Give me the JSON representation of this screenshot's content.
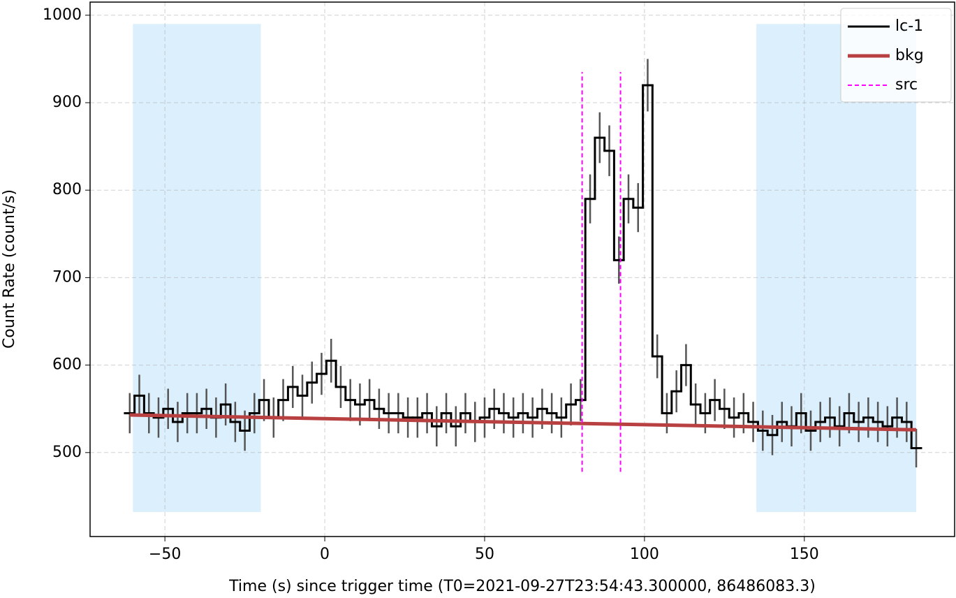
{
  "chart_data": {
    "type": "line",
    "xlabel": "Time (s) since trigger time (T0=2021-09-27T23:54:43.300000, 86486083.3)",
    "ylabel": "Count Rate (count/s)",
    "xlim": [
      -73.4,
      197
    ],
    "ylim": [
      404,
      1015
    ],
    "xticks": [
      {
        "value": -50,
        "label": "−50"
      },
      0,
      50,
      100,
      150
    ],
    "yticks": [
      500,
      600,
      700,
      800,
      900,
      1000
    ],
    "grid": true,
    "legend": "upper right",
    "series": [
      {
        "name": "lc-1",
        "color": "#000000",
        "x": [
          -61,
          -58,
          -55,
          -52,
          -49,
          -46,
          -43,
          -40,
          -37,
          -34,
          -31,
          -28,
          -25,
          -22,
          -19,
          -16,
          -13,
          -10,
          -7,
          -4,
          -1,
          2,
          5,
          8,
          11,
          14,
          17,
          20,
          23,
          26,
          29,
          32,
          35,
          38,
          41,
          44,
          47,
          50,
          53,
          56,
          59,
          62,
          65,
          68,
          71,
          74,
          77,
          80,
          83,
          86,
          89,
          92,
          95,
          98,
          101,
          104,
          107,
          110,
          113,
          116,
          119,
          122,
          125,
          128,
          131,
          134,
          137,
          140,
          143,
          146,
          149,
          152,
          155,
          158,
          161,
          164,
          167,
          170,
          173,
          176,
          179,
          182,
          185
        ],
        "values": [
          545,
          565,
          545,
          540,
          550,
          535,
          545,
          545,
          550,
          540,
          555,
          535,
          525,
          545,
          560,
          540,
          560,
          575,
          565,
          580,
          590,
          605,
          575,
          560,
          555,
          560,
          550,
          545,
          545,
          540,
          540,
          545,
          530,
          545,
          530,
          545,
          535,
          540,
          550,
          545,
          540,
          545,
          540,
          550,
          545,
          540,
          555,
          560,
          790,
          860,
          845,
          720,
          790,
          780,
          920,
          610,
          545,
          570,
          600,
          555,
          545,
          560,
          550,
          540,
          545,
          535,
          525,
          520,
          535,
          530,
          545,
          525,
          535,
          540,
          530,
          545,
          535,
          540,
          535,
          530,
          540,
          535,
          505
        ],
        "errors": [
          23,
          24,
          23,
          23,
          23,
          23,
          23,
          23,
          23,
          23,
          24,
          23,
          23,
          23,
          24,
          23,
          24,
          24,
          24,
          24,
          24,
          25,
          24,
          24,
          24,
          24,
          23,
          23,
          23,
          23,
          23,
          23,
          23,
          23,
          23,
          23,
          23,
          23,
          23,
          23,
          23,
          23,
          23,
          23,
          23,
          23,
          24,
          24,
          28,
          29,
          29,
          27,
          28,
          28,
          30,
          25,
          23,
          24,
          24,
          24,
          23,
          24,
          23,
          23,
          23,
          23,
          23,
          23,
          23,
          23,
          23,
          23,
          23,
          23,
          23,
          23,
          23,
          23,
          23,
          23,
          23,
          23,
          22
        ]
      },
      {
        "name": "bkg",
        "color": "#b94040",
        "x": [
          -61,
          185
        ],
        "values": [
          543,
          526
        ]
      }
    ],
    "src": {
      "name": "src",
      "color": "#ff00ff",
      "x": [
        80.5,
        92.5
      ],
      "y_range": [
        478,
        935
      ]
    },
    "bkg_intervals": [
      [
        -60,
        -20
      ],
      [
        135,
        185
      ]
    ],
    "shade_range": [
      432,
      990
    ],
    "shade_color": "#dbeffc"
  }
}
